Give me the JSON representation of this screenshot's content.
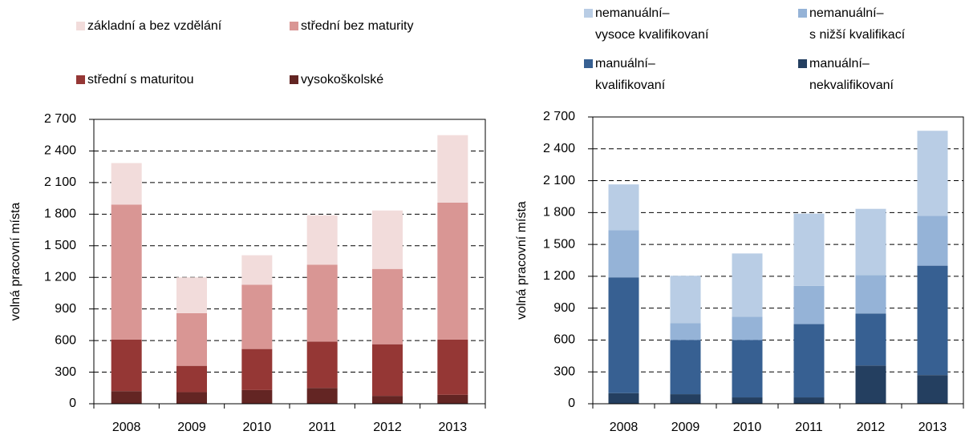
{
  "chart_data": [
    {
      "type": "bar",
      "stacked": true,
      "y_label": "volná pracovní místa",
      "categories": [
        "2008",
        "2009",
        "2010",
        "2011",
        "2012",
        "2013"
      ],
      "series": [
        {
          "name": "základní a bez vzdělání",
          "color": "#f2dcdb",
          "values": [
            395,
            340,
            280,
            470,
            555,
            640
          ]
        },
        {
          "name": "střední bez maturity",
          "color": "#d99694",
          "values": [
            1280,
            500,
            610,
            730,
            715,
            1300
          ]
        },
        {
          "name": "střední s maturitou",
          "color": "#953735",
          "values": [
            490,
            250,
            390,
            440,
            490,
            525
          ]
        },
        {
          "name": "vysokoškolské",
          "color": "#632523",
          "values": [
            120,
            110,
            130,
            150,
            75,
            85
          ]
        }
      ],
      "ylim": [
        0,
        2700
      ],
      "yticks": [
        0,
        300,
        600,
        900,
        {
          "value": 1200,
          "label": "1 200"
        },
        {
          "value": 1500,
          "label": "1 500"
        },
        {
          "value": 1800,
          "label": "1 800"
        },
        {
          "value": 2100,
          "label": "2 100"
        },
        {
          "value": 2400,
          "label": "2 400"
        },
        {
          "value": 2700,
          "label": "2 700"
        }
      ],
      "grid": true
    },
    {
      "type": "bar",
      "stacked": true,
      "y_label": "volná pracovní místa",
      "categories": [
        "2008",
        "2009",
        "2010",
        "2011",
        "2012",
        "2013"
      ],
      "series": [
        {
          "name": "nemanuální–\nvysoce kvalifikovaní",
          "color": "#b9cde5",
          "values": [
            430,
            445,
            595,
            680,
            625,
            800
          ]
        },
        {
          "name": "nemanuální–\ns nižší kvalifikací",
          "color": "#95b3d7",
          "values": [
            445,
            160,
            220,
            360,
            360,
            470
          ]
        },
        {
          "name": "manuální–\nkvalifikovaní",
          "color": "#376092",
          "values": [
            1090,
            510,
            540,
            690,
            490,
            1030
          ]
        },
        {
          "name": "manuální–\nnekvalifikovaní",
          "color": "#243f60",
          "values": [
            100,
            90,
            60,
            60,
            360,
            270
          ]
        }
      ],
      "ylim": [
        0,
        2700
      ],
      "yticks": [
        0,
        300,
        600,
        900,
        {
          "value": 1200,
          "label": "1 200"
        },
        {
          "value": 1500,
          "label": "1 500"
        },
        {
          "value": 1800,
          "label": "1 800"
        },
        {
          "value": 2100,
          "label": "2 100"
        },
        {
          "value": 2400,
          "label": "2 400"
        },
        {
          "value": 2700,
          "label": "2 700"
        }
      ],
      "grid": true
    }
  ]
}
